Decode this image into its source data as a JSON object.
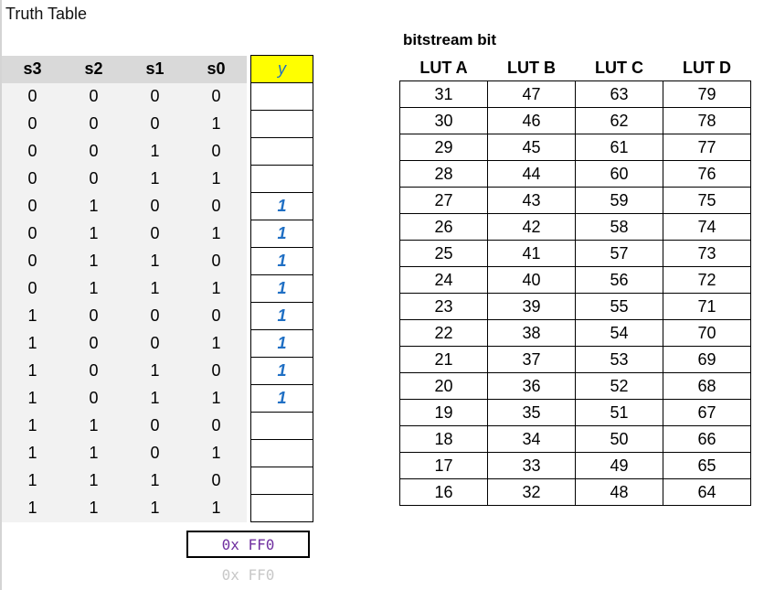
{
  "title": "Truth Table",
  "bitstream_title": "bitstream bit",
  "truth_table": {
    "headers": [
      "s3",
      "s2",
      "s1",
      "s0",
      "y"
    ],
    "rows": [
      {
        "s3": "0",
        "s2": "0",
        "s1": "0",
        "s0": "0",
        "y": ""
      },
      {
        "s3": "0",
        "s2": "0",
        "s1": "0",
        "s0": "1",
        "y": ""
      },
      {
        "s3": "0",
        "s2": "0",
        "s1": "1",
        "s0": "0",
        "y": ""
      },
      {
        "s3": "0",
        "s2": "0",
        "s1": "1",
        "s0": "1",
        "y": ""
      },
      {
        "s3": "0",
        "s2": "1",
        "s1": "0",
        "s0": "0",
        "y": "1"
      },
      {
        "s3": "0",
        "s2": "1",
        "s1": "0",
        "s0": "1",
        "y": "1"
      },
      {
        "s3": "0",
        "s2": "1",
        "s1": "1",
        "s0": "0",
        "y": "1"
      },
      {
        "s3": "0",
        "s2": "1",
        "s1": "1",
        "s0": "1",
        "y": "1"
      },
      {
        "s3": "1",
        "s2": "0",
        "s1": "0",
        "s0": "0",
        "y": "1"
      },
      {
        "s3": "1",
        "s2": "0",
        "s1": "0",
        "s0": "1",
        "y": "1"
      },
      {
        "s3": "1",
        "s2": "0",
        "s1": "1",
        "s0": "0",
        "y": "1"
      },
      {
        "s3": "1",
        "s2": "0",
        "s1": "1",
        "s0": "1",
        "y": "1"
      },
      {
        "s3": "1",
        "s2": "1",
        "s1": "0",
        "s0": "0",
        "y": ""
      },
      {
        "s3": "1",
        "s2": "1",
        "s1": "0",
        "s0": "1",
        "y": ""
      },
      {
        "s3": "1",
        "s2": "1",
        "s1": "1",
        "s0": "0",
        "y": ""
      },
      {
        "s3": "1",
        "s2": "1",
        "s1": "1",
        "s0": "1",
        "y": ""
      }
    ]
  },
  "lut_table": {
    "headers": [
      "LUT A",
      "LUT B",
      "LUT C",
      "LUT D"
    ],
    "rows": [
      [
        "31",
        "47",
        "63",
        "79"
      ],
      [
        "30",
        "46",
        "62",
        "78"
      ],
      [
        "29",
        "45",
        "61",
        "77"
      ],
      [
        "28",
        "44",
        "60",
        "76"
      ],
      [
        "27",
        "43",
        "59",
        "75"
      ],
      [
        "26",
        "42",
        "58",
        "74"
      ],
      [
        "25",
        "41",
        "57",
        "73"
      ],
      [
        "24",
        "40",
        "56",
        "72"
      ],
      [
        "23",
        "39",
        "55",
        "71"
      ],
      [
        "22",
        "38",
        "54",
        "70"
      ],
      [
        "21",
        "37",
        "53",
        "69"
      ],
      [
        "20",
        "36",
        "52",
        "68"
      ],
      [
        "19",
        "35",
        "51",
        "67"
      ],
      [
        "18",
        "34",
        "50",
        "66"
      ],
      [
        "17",
        "33",
        "49",
        "65"
      ],
      [
        "16",
        "32",
        "48",
        "64"
      ]
    ]
  },
  "hex_value": "0x FF0",
  "hex_value_ghost": "0x FF0",
  "colors": {
    "header_fill": "#d9d9d9",
    "cell_fill": "#f2f2f2",
    "y_header_fill": "#ffff00",
    "y_value_color": "#1f6fc4",
    "hex_color": "#7030a0"
  }
}
